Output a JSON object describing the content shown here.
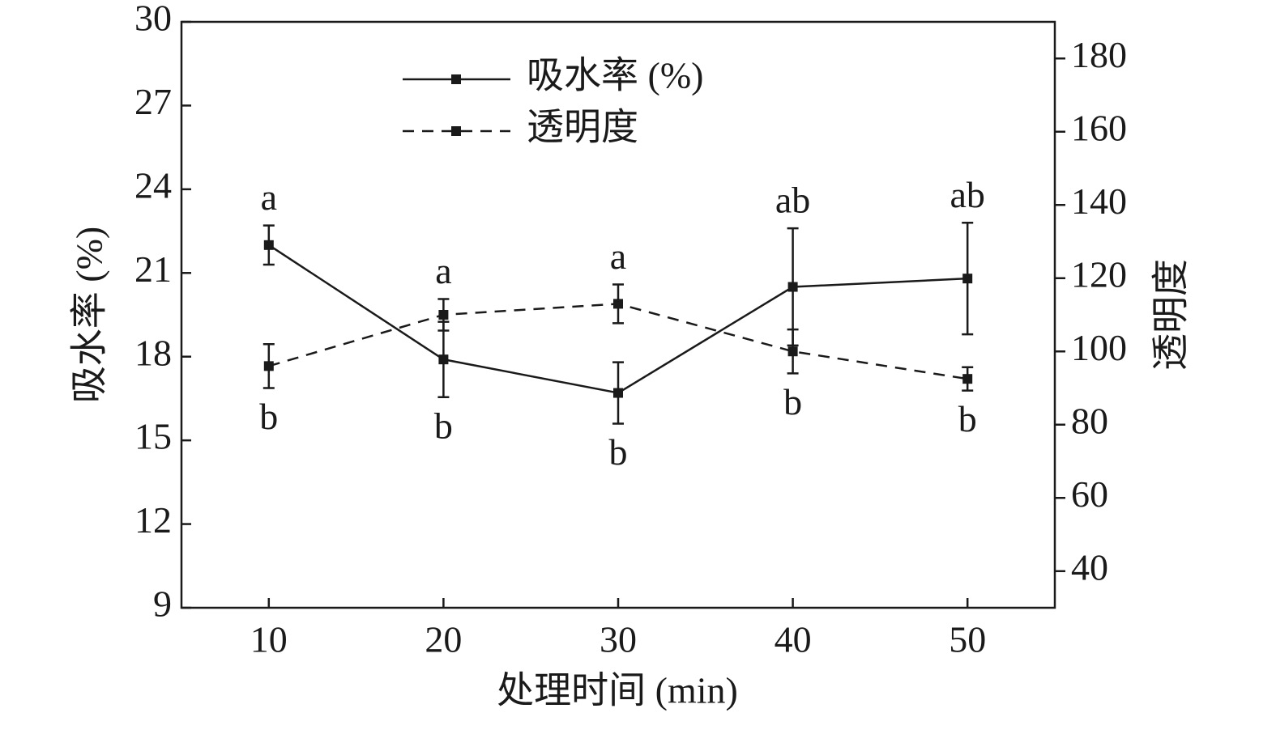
{
  "chart_data": {
    "type": "line",
    "xlabel": "处理时间 (min)",
    "ylabel": "吸水率 (%)",
    "y2label": "透明度",
    "x": [
      10,
      20,
      30,
      40,
      50
    ],
    "xlim": [
      5,
      55
    ],
    "xticks": [
      10,
      20,
      30,
      40,
      50
    ],
    "ylim": [
      9,
      30
    ],
    "yticks": [
      9,
      12,
      15,
      18,
      21,
      24,
      27,
      30
    ],
    "y2lim": [
      30,
      190
    ],
    "y2ticks": [
      40,
      60,
      80,
      100,
      120,
      140,
      160,
      180
    ],
    "series": [
      {
        "name": "吸水率 (%)",
        "color": "#1a1a1a",
        "line_style": "solid",
        "values": [
          22.0,
          17.9,
          16.7,
          20.5,
          20.8
        ],
        "errors": [
          0.7,
          1.35,
          1.1,
          2.1,
          2.0
        ]
      },
      {
        "name": "透明度",
        "color": "#1a1a1a",
        "line_style": "dashed",
        "axis": "y2",
        "values": [
          96,
          110,
          113,
          100,
          92.5
        ],
        "errors": [
          6,
          4.3,
          5.3,
          6,
          3.2
        ]
      }
    ],
    "annotations_upper": [
      "a",
      "a",
      "a",
      "ab",
      "ab"
    ],
    "annotations_lower": [
      "b",
      "b",
      "b",
      "b",
      "b"
    ],
    "legend": "upper center"
  }
}
